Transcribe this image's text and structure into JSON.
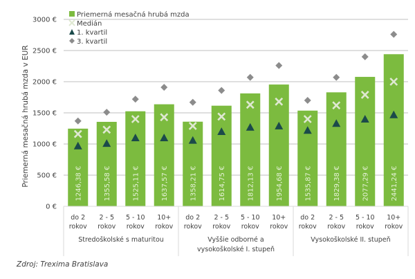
{
  "chart_data": {
    "type": "bar",
    "title": "",
    "xlabel": "",
    "ylabel": "Priemerná mesačná hrubá mzda v EUR",
    "ylim": [
      0,
      3000
    ],
    "yticks": [
      0,
      500,
      1000,
      1500,
      2000,
      2500,
      3000
    ],
    "ytick_labels": [
      "0 €",
      "500 €",
      "1000 €",
      "1500 €",
      "2000 €",
      "2500 €",
      "3000 €"
    ],
    "grid": true,
    "legend_position": "top-left",
    "groups": [
      {
        "label_lines": [
          "Stredoškolské s maturitou"
        ]
      },
      {
        "label_lines": [
          "Vyššie odborné a",
          "vysokoškolské I. stupeň"
        ]
      },
      {
        "label_lines": [
          "Vysokoškolské II. stupeň"
        ]
      }
    ],
    "categories": [
      [
        "do 2",
        "rokov"
      ],
      [
        "2 - 5",
        "rokov"
      ],
      [
        "5 - 10",
        "rokov"
      ],
      [
        "10+",
        "rokov"
      ],
      [
        "do 2",
        "rokov"
      ],
      [
        "2 - 5",
        "rokov"
      ],
      [
        "5 - 10",
        "rokov"
      ],
      [
        "10+",
        "rokov"
      ],
      [
        "do 2",
        "rokov"
      ],
      [
        "2 - 5",
        "rokov"
      ],
      [
        "5 - 10",
        "rokov"
      ],
      [
        "10+",
        "rokov"
      ]
    ],
    "series": [
      {
        "name": "Priemerná mesačná hrubá mzda",
        "type": "bar",
        "color": "#7cbb3f",
        "values": [
          1246.38,
          1355.58,
          1525.11,
          1637.57,
          1358.21,
          1614.75,
          1812.13,
          1954.68,
          1535.87,
          1829.38,
          2077.29,
          2441.24
        ],
        "data_labels": [
          "1246,38 €",
          "1355,58 €",
          "1525,11 €",
          "1637,57 €",
          "1358,21 €",
          "1614,75 €",
          "1812,13 €",
          "1954,68 €",
          "1535,87 €",
          "1829,38 €",
          "2077,29 €",
          "2441,24 €"
        ]
      },
      {
        "name": "Medián",
        "type": "marker-x",
        "color": "#dfe8d2",
        "values": [
          1160,
          1230,
          1400,
          1430,
          1290,
          1440,
          1630,
          1680,
          1400,
          1620,
          1790,
          2000
        ]
      },
      {
        "name": "1. kvartil",
        "type": "marker-triangle",
        "color": "#1b4a4a",
        "values": [
          970,
          1010,
          1100,
          1100,
          1060,
          1200,
          1270,
          1290,
          1220,
          1330,
          1400,
          1470
        ]
      },
      {
        "name": "3. kvartil",
        "type": "marker-diamond",
        "color": "#8c8c8c",
        "values": [
          1370,
          1510,
          1720,
          1910,
          1670,
          1860,
          2070,
          2260,
          1700,
          2070,
          2400,
          2760
        ]
      }
    ]
  },
  "source": "Zdroj: Trexima Bratislava"
}
